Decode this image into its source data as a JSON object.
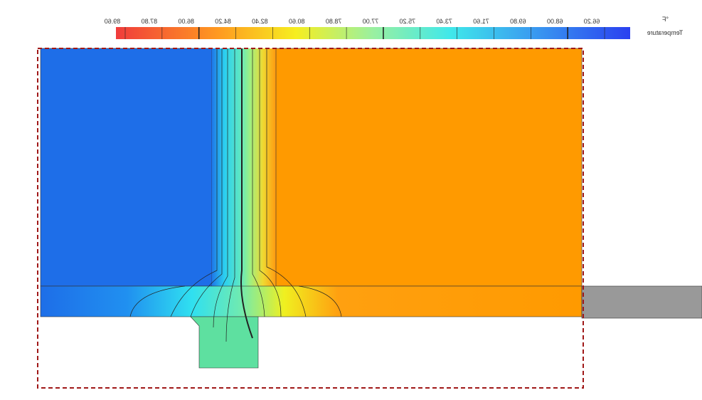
{
  "legend": {
    "unit": "°F",
    "title": "Temperature",
    "tick_labels": [
      "89.60",
      "87.80",
      "86.00",
      "84.20",
      "82.40",
      "80.60",
      "78.80",
      "77.00",
      "75.20",
      "73.40",
      "71.60",
      "69.80",
      "68.00",
      "66.20"
    ]
  }
}
